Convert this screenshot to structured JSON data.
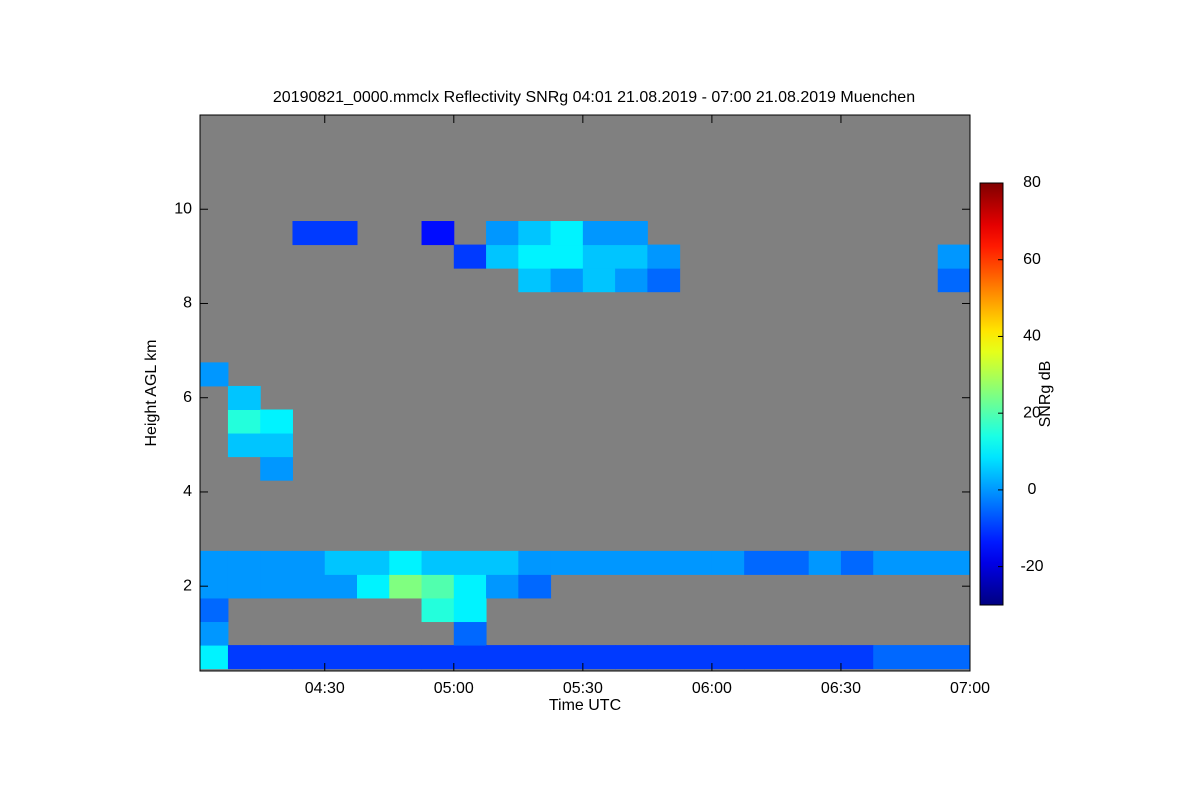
{
  "chart_data": {
    "type": "heatmap",
    "title": "20190821_0000.mmclx Reflectivity SNRg   04:01 21.08.2019 - 07:00 21.08.2019 Muenchen",
    "xlabel": "Time UTC",
    "ylabel": "Height AGL km",
    "colorbar_label": "SNRg dB",
    "xlim": [
      4.0167,
      7
    ],
    "ylim": [
      0.2,
      12
    ],
    "xticks": [
      {
        "value": 4.5,
        "label": "04:30"
      },
      {
        "value": 5,
        "label": "05:00"
      },
      {
        "value": 5.5,
        "label": "05:30"
      },
      {
        "value": 6,
        "label": "06:00"
      },
      {
        "value": 6.5,
        "label": "06:30"
      },
      {
        "value": 7,
        "label": "07:00"
      }
    ],
    "yticks": [
      2,
      4,
      6,
      8,
      10
    ],
    "clim": [
      -30,
      80
    ],
    "cticks": [
      -20,
      0,
      20,
      40,
      60,
      80
    ],
    "background": "#808080",
    "x": [
      4.0625,
      4.0625,
      4.0625,
      4.0625,
      4.0625,
      4.0625,
      4.1875,
      4.1875,
      4.1875,
      4.1875,
      4.1875,
      4.1875,
      4.3125,
      4.3125,
      4.3125,
      4.3125,
      4.3125,
      4.3125,
      4.4375,
      4.4375,
      4.4375,
      4.4375,
      4.5625,
      4.5625,
      4.5625,
      4.5625,
      4.6875,
      4.6875,
      4.6875,
      4.8125,
      4.8125,
      4.8125,
      4.9375,
      4.9375,
      4.9375,
      4.9375,
      4.9375,
      5.0625,
      5.0625,
      5.0625,
      5.0625,
      5.0625,
      5.0625,
      5.1875,
      5.1875,
      5.1875,
      5.1875,
      5.1875,
      5.3125,
      5.3125,
      5.3125,
      5.3125,
      5.3125,
      5.3125,
      5.4375,
      5.4375,
      5.4375,
      5.4375,
      5.4375,
      5.5625,
      5.5625,
      5.5625,
      5.5625,
      5.5625,
      5.6875,
      5.6875,
      5.6875,
      5.6875,
      5.6875,
      5.8125,
      5.8125,
      5.8125,
      5.8125,
      5.9375,
      5.9375,
      6.0625,
      6.0625,
      6.1875,
      6.1875,
      6.3125,
      6.3125,
      6.4375,
      6.4375,
      6.5625,
      6.5625,
      6.6875,
      6.6875,
      6.8125,
      6.8125,
      6.9375,
      6.9375,
      6.9375,
      6.9375
    ],
    "y": [
      0.5,
      1.0,
      1.5,
      2.0,
      2.5,
      6.5,
      0.5,
      2.0,
      2.5,
      5.0,
      5.5,
      6.0,
      0.5,
      2.0,
      2.5,
      4.5,
      5.0,
      5.5,
      0.5,
      2.0,
      2.5,
      9.5,
      0.5,
      2.0,
      2.5,
      9.5,
      0.5,
      2.0,
      2.5,
      0.5,
      2.0,
      2.5,
      0.5,
      1.5,
      2.0,
      2.5,
      9.5,
      0.5,
      1.0,
      1.5,
      2.0,
      2.5,
      9.0,
      0.5,
      2.0,
      2.5,
      9.0,
      9.5,
      0.5,
      2.0,
      2.5,
      8.5,
      9.0,
      9.5,
      0.5,
      2.5,
      8.5,
      9.0,
      9.5,
      0.5,
      2.5,
      8.5,
      9.0,
      9.5,
      0.5,
      2.5,
      8.5,
      9.0,
      9.5,
      0.5,
      2.5,
      8.5,
      9.0,
      0.5,
      2.5,
      0.5,
      2.5,
      0.5,
      2.5,
      0.5,
      2.5,
      0.5,
      2.5,
      0.5,
      2.5,
      0.5,
      2.5,
      0.5,
      2.5,
      0.5,
      2.5,
      8.5,
      9.0
    ],
    "values": [
      10,
      0,
      -5,
      0,
      0,
      0,
      -10,
      0,
      0,
      5,
      15,
      5,
      -10,
      0,
      0,
      0,
      5,
      10,
      -10,
      0,
      0,
      -10,
      -10,
      0,
      5,
      -10,
      -10,
      10,
      5,
      -10,
      25,
      10,
      -10,
      15,
      20,
      5,
      -15,
      -10,
      -5,
      10,
      10,
      5,
      -10,
      -10,
      0,
      5,
      5,
      0,
      -10,
      -5,
      0,
      5,
      10,
      5,
      -10,
      0,
      0,
      10,
      10,
      -10,
      0,
      5,
      5,
      0,
      -10,
      0,
      0,
      5,
      0,
      -10,
      0,
      -5,
      0,
      -10,
      0,
      -10,
      0,
      -10,
      -5,
      -10,
      -5,
      -10,
      0,
      -10,
      -5,
      -5,
      0,
      -5,
      0,
      -5,
      0,
      -5,
      0
    ]
  }
}
